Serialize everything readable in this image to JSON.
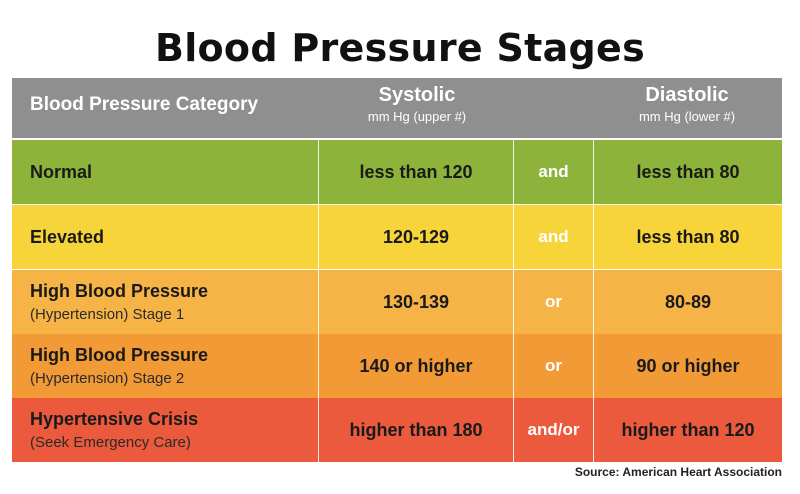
{
  "title": "Blood Pressure Stages",
  "header": {
    "category": "Blood Pressure Category",
    "systolic": "Systolic",
    "systolic_unit": "mm Hg (upper #)",
    "diastolic": "Diastolic",
    "diastolic_unit": "mm Hg (lower #)"
  },
  "rows": [
    {
      "line1": "Normal",
      "line2": "",
      "systolic": "less than 120",
      "conjunction": "and",
      "diastolic": "less than 80",
      "color": "#8db33b"
    },
    {
      "line1": "Elevated",
      "line2": "",
      "systolic": "120-129",
      "conjunction": "and",
      "diastolic": "less than 80",
      "color": "#f6d43a"
    },
    {
      "line1": "High Blood Pressure",
      "line2": "(Hypertension) Stage 1",
      "systolic": "130-139",
      "conjunction": "or",
      "diastolic": "80-89",
      "color": "#f7b446"
    },
    {
      "line1": "High Blood Pressure",
      "line2": "(Hypertension) Stage 2",
      "systolic": "140 or higher",
      "conjunction": "or",
      "diastolic": "90 or higher",
      "color": "#f29a36"
    },
    {
      "line1": "Hypertensive Crisis",
      "line2": "(Seek Emergency Care)",
      "systolic": "higher than 180",
      "conjunction": "and/or",
      "diastolic": "higher than 120",
      "color": "#eb5a3c"
    }
  ],
  "source": "Source: American Heart Association"
}
